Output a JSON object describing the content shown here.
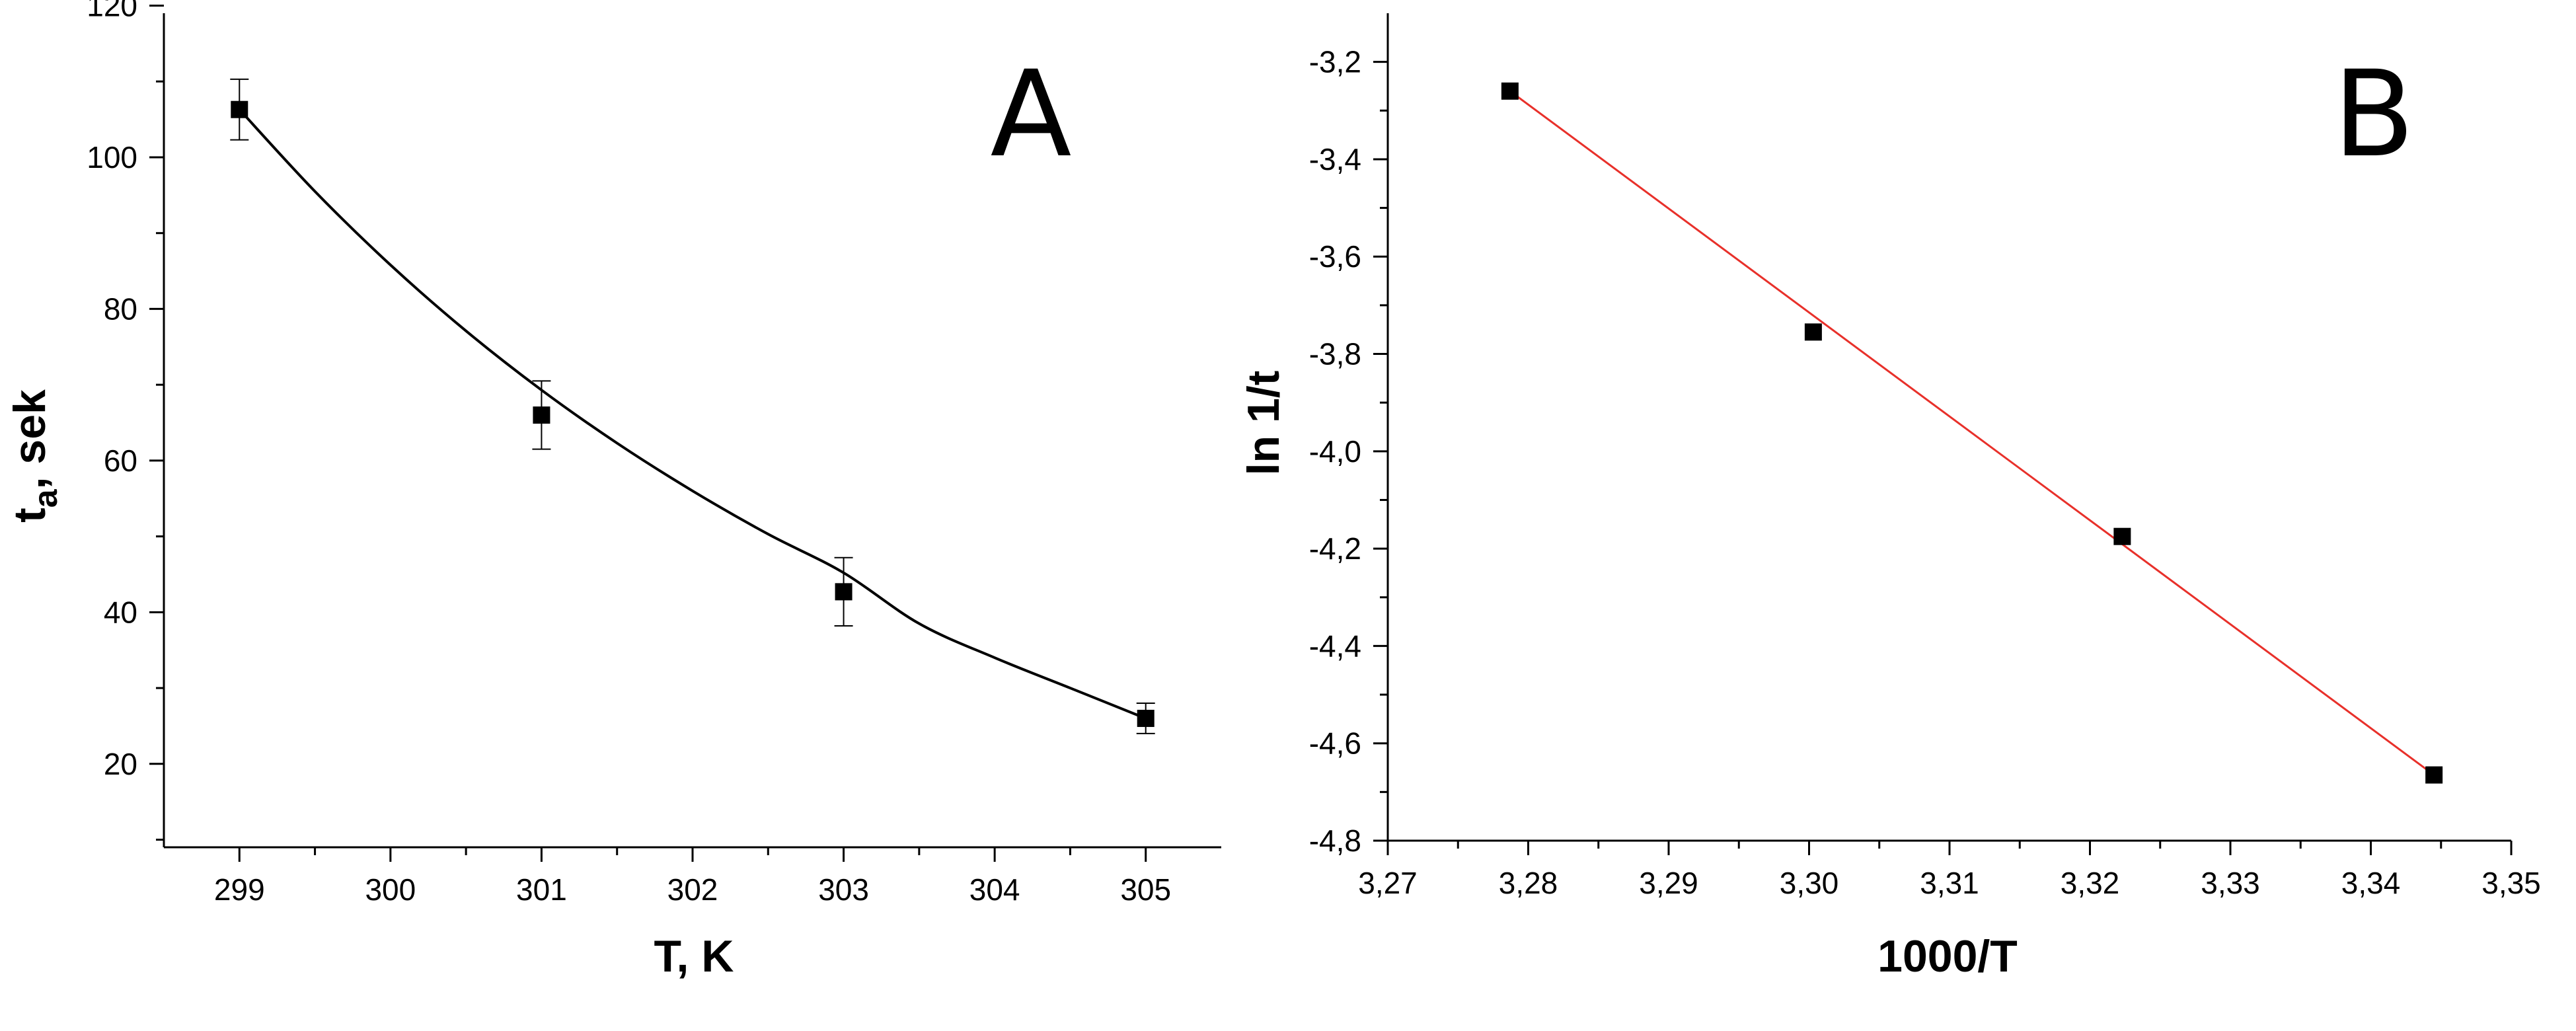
{
  "chart_data": [
    {
      "panel_label": "A",
      "type": "scatter",
      "xlabel": "T, K",
      "ylabel_main": "t",
      "ylabel_sub": "a",
      "ylabel_rest": ", sek",
      "xlim": [
        298.5,
        305.5
      ],
      "ylim": [
        9,
        119
      ],
      "xticks": [
        299,
        300,
        301,
        302,
        303,
        304,
        305
      ],
      "xtick_labels": [
        "299",
        "300",
        "301",
        "302",
        "303",
        "304",
        "305"
      ],
      "yticks": [
        20,
        40,
        60,
        80,
        100,
        120
      ],
      "ytick_labels": [
        "20",
        "40",
        "60",
        "80",
        "100",
        "120"
      ],
      "grid": false,
      "points": [
        {
          "x": 299,
          "y": 106.3,
          "err": 4.0
        },
        {
          "x": 301,
          "y": 66.0,
          "err": 4.5
        },
        {
          "x": 303,
          "y": 42.7,
          "err": 4.5
        },
        {
          "x": 305,
          "y": 26.0,
          "err": 2.0
        }
      ],
      "fit": {
        "kind": "exponential-decay curve",
        "color": "#000000",
        "samples": [
          [
            299,
            106.3
          ],
          [
            299.5,
            95.5
          ],
          [
            300,
            85.8
          ],
          [
            300.5,
            77.1
          ],
          [
            301,
            69.3
          ],
          [
            301.5,
            62.3
          ],
          [
            302,
            56.0
          ],
          [
            302.5,
            50.3
          ],
          [
            303,
            45.2
          ],
          [
            303.5,
            38.5
          ],
          [
            304,
            34.0
          ],
          [
            304.5,
            30.0
          ],
          [
            305,
            26.0
          ]
        ]
      },
      "marker_color": "#000000"
    },
    {
      "panel_label": "B",
      "type": "scatter",
      "xlabel": "1000/T",
      "ylabel": "ln 1/t",
      "xlim": [
        3.27,
        3.35
      ],
      "ylim": [
        -4.8,
        -3.1
      ],
      "xticks": [
        3.27,
        3.28,
        3.29,
        3.3,
        3.31,
        3.32,
        3.33,
        3.34,
        3.35
      ],
      "xtick_labels": [
        "3,27",
        "3,28",
        "3,29",
        "3,30",
        "3,31",
        "3,32",
        "3,33",
        "3,34",
        "3,35"
      ],
      "yticks": [
        -4.8,
        -4.6,
        -4.4,
        -4.2,
        -4.0,
        -3.8,
        -3.6,
        -3.4,
        -3.2
      ],
      "ytick_labels": [
        "-4,8",
        "-4,6",
        "-4,4",
        "-4,2",
        "-4,0",
        "-3,8",
        "-3,6",
        "-3,4",
        "-3,2"
      ],
      "grid": false,
      "points": [
        {
          "x": 3.2787,
          "y": -3.26
        },
        {
          "x": 3.3003,
          "y": -3.755
        },
        {
          "x": 3.3223,
          "y": -4.175
        },
        {
          "x": 3.3445,
          "y": -4.665
        }
      ],
      "fit": {
        "kind": "linear",
        "color": "#e8302a",
        "line": [
          [
            3.2787,
            -3.26
          ],
          [
            3.3445,
            -4.665
          ]
        ]
      },
      "marker_color": "#000000"
    }
  ]
}
